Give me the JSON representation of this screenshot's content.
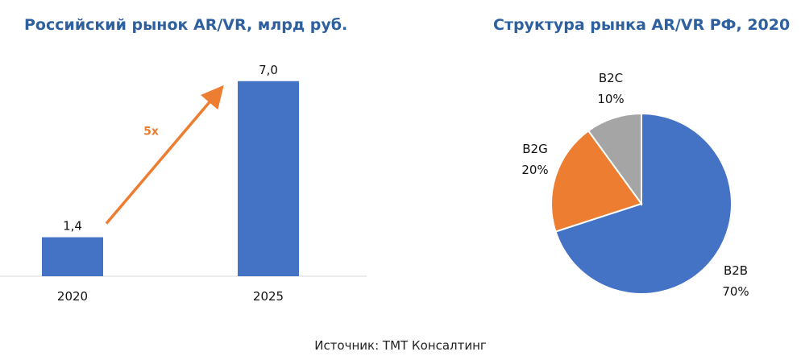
{
  "colors": {
    "title": "#2e5f9e",
    "bar": "#4472c4",
    "arrow": "#ed7d31",
    "b2b": "#4472c4",
    "b2g": "#ed7d31",
    "b2c": "#a5a5a5"
  },
  "source": "Источник: ТМТ Консалтинг",
  "chart_data": [
    {
      "type": "bar",
      "title": "Российский рынок AR/VR, млрд руб.",
      "categories": [
        "2020",
        "2025"
      ],
      "values": [
        1.4,
        7.0
      ],
      "value_labels": [
        "1,4",
        "7,0"
      ],
      "ylim": [
        0,
        7.6
      ],
      "grid": false,
      "annotation": {
        "text": "5x",
        "shape": "arrow",
        "from_category": "2020",
        "to_category": "2025"
      }
    },
    {
      "type": "pie",
      "title": "Структура рынка AR/VR РФ, 2020",
      "slices": [
        {
          "label": "B2B",
          "value": 70,
          "value_label": "70%",
          "color": "#4472c4"
        },
        {
          "label": "B2G",
          "value": 20,
          "value_label": "20%",
          "color": "#ed7d31"
        },
        {
          "label": "B2C",
          "value": 10,
          "value_label": "10%",
          "color": "#a5a5a5"
        }
      ]
    }
  ]
}
